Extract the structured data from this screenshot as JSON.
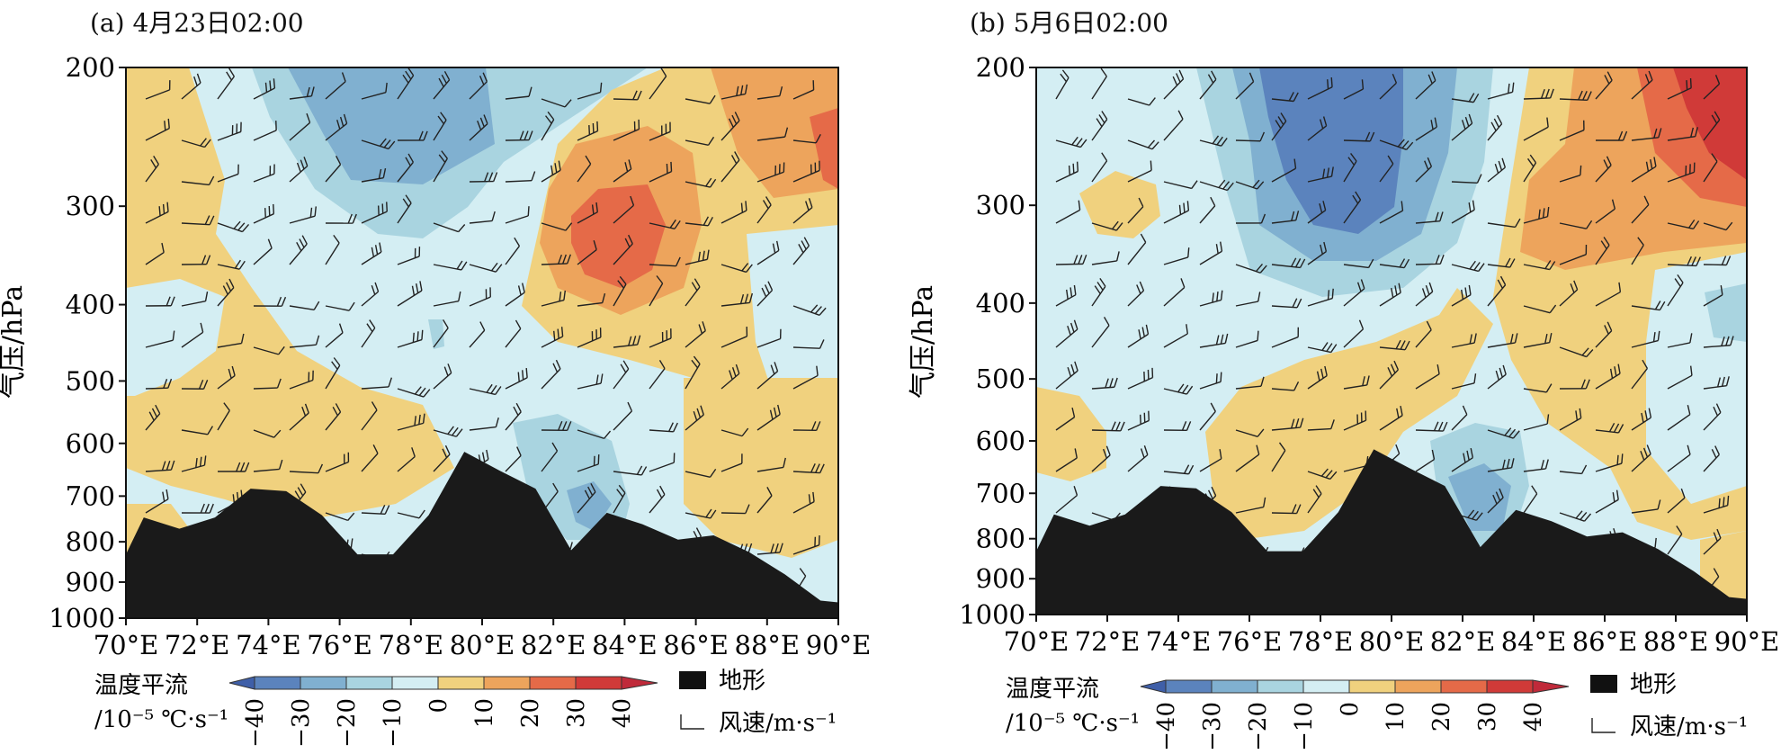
{
  "chart_data": [
    {
      "type": "heatmap",
      "title": "(a) 4月23日02:00",
      "ylabel": "气压/hPa",
      "xlabel": "",
      "x_ticks": [
        "70°E",
        "72°E",
        "74°E",
        "76°E",
        "78°E",
        "80°E",
        "82°E",
        "84°E",
        "86°E",
        "88°E",
        "90°E"
      ],
      "x_range": [
        70,
        90
      ],
      "y_ticks": [
        200,
        300,
        400,
        500,
        600,
        700,
        800,
        900,
        1000
      ],
      "y_range": [
        200,
        1000
      ],
      "terrain_profile": {
        "lon": [
          70,
          70.5,
          71.5,
          72.5,
          73.5,
          74.5,
          75.5,
          76.5,
          77.5,
          78.5,
          79.5,
          80.5,
          81.5,
          82.5,
          83.5,
          84.5,
          85.5,
          86.5,
          87.5,
          88.5,
          89.5,
          90
        ],
        "pressure": [
          830,
          745,
          770,
          745,
          685,
          690,
          740,
          830,
          830,
          740,
          615,
          650,
          685,
          820,
          735,
          760,
          795,
          785,
          825,
          880,
          950,
          955
        ]
      }
    },
    {
      "type": "heatmap",
      "title": "(b) 5月6日02:00",
      "ylabel": "气压/hPa",
      "xlabel": "",
      "x_ticks": [
        "70°E",
        "72°E",
        "74°E",
        "76°E",
        "78°E",
        "80°E",
        "82°E",
        "84°E",
        "86°E",
        "88°E",
        "90°E"
      ],
      "x_range": [
        70,
        90
      ],
      "y_ticks": [
        200,
        300,
        400,
        500,
        600,
        700,
        800,
        900,
        1000
      ],
      "y_range": [
        200,
        1000
      ],
      "terrain_profile": {
        "lon": [
          70,
          70.5,
          71.5,
          72.5,
          73.5,
          74.5,
          75.5,
          76.5,
          77.5,
          78.5,
          79.5,
          80.5,
          81.5,
          82.5,
          83.5,
          84.5,
          85.5,
          86.5,
          87.5,
          88.5,
          89.5,
          90
        ],
        "pressure": [
          830,
          745,
          770,
          745,
          685,
          690,
          740,
          830,
          830,
          740,
          615,
          650,
          685,
          820,
          735,
          760,
          795,
          785,
          825,
          880,
          950,
          955
        ]
      }
    }
  ],
  "legend": {
    "colorbar_title_line1": "温度平流",
    "colorbar_title_line2": "/10⁻⁵ ℃·s⁻¹",
    "levels": [
      "−40",
      "−30",
      "−20",
      "−10",
      "0",
      "10",
      "20",
      "30",
      "40"
    ],
    "colors": [
      "#3f5fa8",
      "#5b83bd",
      "#80b0d0",
      "#a9d4e0",
      "#d4eef3",
      "#f0d17e",
      "#eda45c",
      "#e56a48",
      "#d03a38",
      "#c02a3a"
    ],
    "terrain_label": "地形",
    "wind_label": "风速/m·s⁻¹"
  }
}
